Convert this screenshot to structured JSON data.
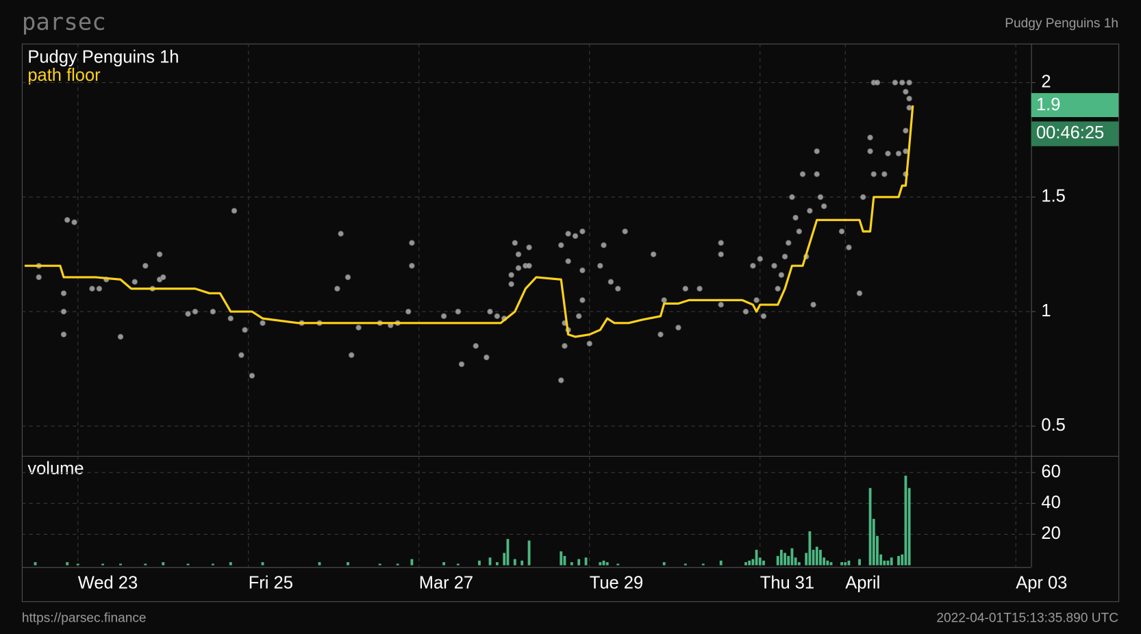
{
  "brand": "parsec",
  "header_right": "Pudgy Penguins 1h",
  "footer": {
    "url": "https://parsec.finance",
    "timestamp": "2022-04-01T15:13:35.890 UTC"
  },
  "chart_data": [
    {
      "type": "line",
      "title": "Pudgy Penguins 1h",
      "last_value": 1.9,
      "countdown": "00:46:25",
      "xlim": [
        "2022-03-22T08:13",
        "2022-04-03T04:18"
      ],
      "xticks": [
        {
          "value": "2022-03-23",
          "label": "Wed 23"
        },
        {
          "value": "2022-03-25",
          "label": "Fri 25"
        },
        {
          "value": "2022-03-27",
          "label": "Mar 27"
        },
        {
          "value": "2022-03-29",
          "label": "Tue 29"
        },
        {
          "value": "2022-03-31",
          "label": "Thu 31"
        },
        {
          "value": "2022-04-01",
          "label": "April"
        },
        {
          "value": "2022-04-03",
          "label": "Apr 03"
        }
      ],
      "ylim": [
        0.37,
        2.17
      ],
      "yticks": [
        0.5,
        1,
        1.5,
        2
      ],
      "grid": true,
      "series": [
        {
          "name": "path floor",
          "color": "#ffd21a",
          "x": [
            "2022-03-22T09:00",
            "2022-03-22T19:00",
            "2022-03-22T20:00",
            "2022-03-23T05:00",
            "2022-03-23T12:00",
            "2022-03-23T15:00",
            "2022-03-24T09:00",
            "2022-03-24T13:00",
            "2022-03-24T16:00",
            "2022-03-24T19:00",
            "2022-03-25T01:00",
            "2022-03-25T04:00",
            "2022-03-25T14:00",
            "2022-03-27T19:00",
            "2022-03-27T23:00",
            "2022-03-28T03:00",
            "2022-03-28T06:00",
            "2022-03-28T09:00",
            "2022-03-28T16:00",
            "2022-03-28T18:00",
            "2022-03-28T20:00",
            "2022-03-29T00:00",
            "2022-03-29T03:00",
            "2022-03-29T05:00",
            "2022-03-29T07:00",
            "2022-03-29T11:00",
            "2022-03-29T15:00",
            "2022-03-29T20:00",
            "2022-03-29T21:00",
            "2022-03-30T01:00",
            "2022-03-30T04:00",
            "2022-03-30T19:00",
            "2022-03-30T22:00",
            "2022-03-30T23:00",
            "2022-03-31T00:00",
            "2022-03-31T05:00",
            "2022-03-31T07:00",
            "2022-03-31T09:00",
            "2022-03-31T12:00",
            "2022-03-31T14:00",
            "2022-03-31T16:00",
            "2022-04-01T04:00",
            "2022-04-01T05:00",
            "2022-04-01T07:00",
            "2022-04-01T08:00",
            "2022-04-01T11:00",
            "2022-04-01T15:00",
            "2022-04-01T16:00",
            "2022-04-01T17:00",
            "2022-04-01T18:00",
            "2022-04-01T19:00"
          ],
          "values": [
            1.2,
            1.2,
            1.15,
            1.15,
            1.14,
            1.1,
            1.1,
            1.08,
            1.08,
            1,
            1,
            0.97,
            0.95,
            0.95,
            0.95,
            1,
            1.1,
            1.15,
            1.14,
            0.9,
            0.89,
            0.9,
            0.92,
            0.97,
            0.95,
            0.95,
            0.965,
            0.98,
            1.035,
            1.035,
            1.05,
            1.05,
            1.03,
            1,
            1.03,
            1.03,
            1.1,
            1.2,
            1.2,
            1.3,
            1.4,
            1.4,
            1.35,
            1.35,
            1.5,
            1.5,
            1.5,
            1.55,
            1.55,
            1.72,
            1.9
          ]
        }
      ],
      "points": {
        "color": "#b8b8b8",
        "x": [
          "2022-03-22T13:00",
          "2022-03-22T13:00",
          "2022-03-22T21:00",
          "2022-03-22T23:00",
          "2022-03-22T20:00",
          "2022-03-22T20:00",
          "2022-03-22T20:00",
          "2022-03-23T04:00",
          "2022-03-23T06:00",
          "2022-03-23T08:00",
          "2022-03-23T12:00",
          "2022-03-23T16:00",
          "2022-03-23T19:00",
          "2022-03-23T21:00",
          "2022-03-23T23:00",
          "2022-03-24T00:00",
          "2022-03-23T23:00",
          "2022-03-24T07:00",
          "2022-03-24T09:00",
          "2022-03-24T14:00",
          "2022-03-24T20:00",
          "2022-03-24T19:00",
          "2022-03-24T22:00",
          "2022-03-24T23:00",
          "2022-03-25T01:00",
          "2022-03-25T04:00",
          "2022-03-25T15:00",
          "2022-03-25T20:00",
          "2022-03-26T01:00",
          "2022-03-26T02:00",
          "2022-03-26T04:00",
          "2022-03-26T05:00",
          "2022-03-26T07:00",
          "2022-03-26T13:00",
          "2022-03-26T16:00",
          "2022-03-26T18:00",
          "2022-03-26T21:00",
          "2022-03-26T22:00",
          "2022-03-26T22:00",
          "2022-03-27T07:00",
          "2022-03-27T11:00",
          "2022-03-27T12:00",
          "2022-03-27T16:00",
          "2022-03-27T19:00",
          "2022-03-27T20:00",
          "2022-03-27T22:00",
          "2022-03-28T00:00",
          "2022-03-28T02:00",
          "2022-03-28T02:00",
          "2022-03-28T03:00",
          "2022-03-28T04:00",
          "2022-03-28T04:00",
          "2022-03-28T06:00",
          "2022-03-28T07:00",
          "2022-03-28T07:00",
          "2022-03-28T16:00",
          "2022-03-28T18:00",
          "2022-03-28T18:00",
          "2022-03-28T17:00",
          "2022-03-28T17:00",
          "2022-03-28T16:00",
          "2022-03-28T18:00",
          "2022-03-28T20:00",
          "2022-03-28T22:00",
          "2022-03-28T21:00",
          "2022-03-28T22:00",
          "2022-03-28T22:00",
          "2022-03-29T00:00",
          "2022-03-29T03:00",
          "2022-03-29T04:00",
          "2022-03-29T06:00",
          "2022-03-29T08:00",
          "2022-03-29T10:00",
          "2022-03-29T18:00",
          "2022-03-29T20:00",
          "2022-03-29T21:00",
          "2022-03-30T01:00",
          "2022-03-30T03:00",
          "2022-03-30T07:00",
          "2022-03-30T13:00",
          "2022-03-30T13:00",
          "2022-03-30T13:00",
          "2022-03-30T20:00",
          "2022-03-30T22:00",
          "2022-03-30T23:00",
          "2022-03-31T00:00",
          "2022-03-31T01:00",
          "2022-03-31T04:00",
          "2022-03-31T05:00",
          "2022-03-31T06:00",
          "2022-03-31T07:00",
          "2022-03-31T08:00",
          "2022-03-31T09:00",
          "2022-03-31T10:00",
          "2022-03-31T11:00",
          "2022-03-31T12:00",
          "2022-03-31T13:00",
          "2022-03-31T14:00",
          "2022-03-31T15:00",
          "2022-03-31T16:00",
          "2022-03-31T16:00",
          "2022-03-31T17:00",
          "2022-03-31T18:00",
          "2022-03-31T23:00",
          "2022-04-01T01:00",
          "2022-04-01T04:00",
          "2022-04-01T05:00",
          "2022-04-01T07:00",
          "2022-04-01T07:00",
          "2022-04-01T08:00",
          "2022-04-01T09:00",
          "2022-04-01T08:00",
          "2022-04-01T11:00",
          "2022-04-01T12:00",
          "2022-04-01T14:00",
          "2022-04-01T15:00",
          "2022-04-01T16:00",
          "2022-04-01T17:00",
          "2022-04-01T18:00",
          "2022-04-01T17:00",
          "2022-04-01T17:00",
          "2022-04-01T17:00",
          "2022-04-01T18:00",
          "2022-04-01T18:00"
        ],
        "values": [
          1.2,
          1.15,
          1.4,
          1.39,
          1.08,
          1,
          0.9,
          1.1,
          1.1,
          1.14,
          0.89,
          1.13,
          1.2,
          1.1,
          1.14,
          1.15,
          1.25,
          0.99,
          1,
          1,
          1.44,
          0.97,
          0.81,
          0.92,
          0.72,
          0.95,
          0.95,
          0.95,
          1.1,
          1.34,
          1.15,
          0.81,
          0.93,
          0.95,
          0.94,
          0.95,
          1,
          1.3,
          1.2,
          0.98,
          1,
          0.77,
          0.85,
          0.8,
          1,
          0.98,
          0.97,
          1.16,
          1.12,
          1.3,
          1.25,
          1.19,
          1.2,
          1.28,
          1.2,
          1.29,
          1.34,
          1.22,
          0.95,
          0.85,
          0.7,
          0.92,
          1.33,
          1.35,
          0.98,
          1.18,
          1.05,
          0.86,
          1.2,
          1.29,
          1.13,
          1.1,
          1.35,
          1.25,
          0.9,
          1.05,
          0.93,
          1.1,
          1.1,
          1.3,
          1.25,
          1.03,
          1,
          1.2,
          1.05,
          1.23,
          0.98,
          1.2,
          1.1,
          1.16,
          1.24,
          1.3,
          1.5,
          1.41,
          1.35,
          1.6,
          1.24,
          1.44,
          1.03,
          1.7,
          1.6,
          1.5,
          1.46,
          1.35,
          1.28,
          1.08,
          1.5,
          1.7,
          1.76,
          2,
          2,
          1.6,
          1.6,
          1.69,
          2,
          1.69,
          2,
          1.96,
          1.89,
          1.79,
          1.7,
          1.6,
          1.93,
          2
        ]
      }
    },
    {
      "type": "bar",
      "title": "volume",
      "color": "#4cb782",
      "ylim": [
        -1.2,
        70.8
      ],
      "yticks": [
        20,
        40,
        60
      ],
      "grid": true,
      "x": [
        "2022-03-22T12:00",
        "2022-03-22T21:00",
        "2022-03-23T00:00",
        "2022-03-23T07:00",
        "2022-03-23T12:00",
        "2022-03-23T19:00",
        "2022-03-24T00:00",
        "2022-03-24T07:00",
        "2022-03-24T14:00",
        "2022-03-24T19:00",
        "2022-03-25T04:00",
        "2022-03-25T20:00",
        "2022-03-26T04:00",
        "2022-03-26T13:00",
        "2022-03-26T18:00",
        "2022-03-26T22:00",
        "2022-03-27T07:00",
        "2022-03-27T11:00",
        "2022-03-27T17:00",
        "2022-03-27T20:00",
        "2022-03-27T22:00",
        "2022-03-28T00:00",
        "2022-03-28T01:00",
        "2022-03-28T03:00",
        "2022-03-28T05:00",
        "2022-03-28T07:00",
        "2022-03-28T16:00",
        "2022-03-28T17:00",
        "2022-03-28T19:00",
        "2022-03-28T21:00",
        "2022-03-28T23:00",
        "2022-03-29T03:00",
        "2022-03-29T04:00",
        "2022-03-29T05:00",
        "2022-03-29T08:00",
        "2022-03-29T21:00",
        "2022-03-30T03:00",
        "2022-03-30T08:00",
        "2022-03-30T13:00",
        "2022-03-30T20:00",
        "2022-03-30T21:00",
        "2022-03-30T22:00",
        "2022-03-30T23:00",
        "2022-03-31T00:00",
        "2022-03-31T01:00",
        "2022-03-31T05:00",
        "2022-03-31T06:00",
        "2022-03-31T07:00",
        "2022-03-31T08:00",
        "2022-03-31T09:00",
        "2022-03-31T10:00",
        "2022-03-31T11:00",
        "2022-03-31T13:00",
        "2022-03-31T14:00",
        "2022-03-31T15:00",
        "2022-03-31T16:00",
        "2022-03-31T17:00",
        "2022-03-31T18:00",
        "2022-03-31T19:00",
        "2022-03-31T20:00",
        "2022-03-31T23:00",
        "2022-04-01T00:00",
        "2022-04-01T01:00",
        "2022-04-01T04:00",
        "2022-04-01T07:00",
        "2022-04-01T08:00",
        "2022-04-01T09:00",
        "2022-04-01T10:00",
        "2022-04-01T11:00",
        "2022-04-01T12:00",
        "2022-04-01T13:00",
        "2022-04-01T15:00",
        "2022-04-01T16:00",
        "2022-04-01T17:00",
        "2022-04-01T18:00"
      ],
      "values": [
        2,
        2,
        1,
        1,
        1,
        1,
        2,
        1,
        1,
        2,
        2,
        2,
        2,
        1,
        1,
        4,
        2,
        1,
        3,
        5,
        2,
        8,
        17,
        4,
        3,
        16,
        9,
        6,
        2,
        4,
        5,
        2,
        3,
        2,
        1,
        2,
        1,
        1,
        3,
        2,
        3,
        4,
        10,
        5,
        3,
        6,
        10,
        8,
        6,
        11,
        5,
        2,
        8,
        22,
        10,
        12,
        10,
        5,
        3,
        2,
        2,
        2,
        3,
        4,
        50,
        30,
        19,
        7,
        3,
        3,
        5,
        6,
        7,
        58,
        50
      ]
    }
  ]
}
